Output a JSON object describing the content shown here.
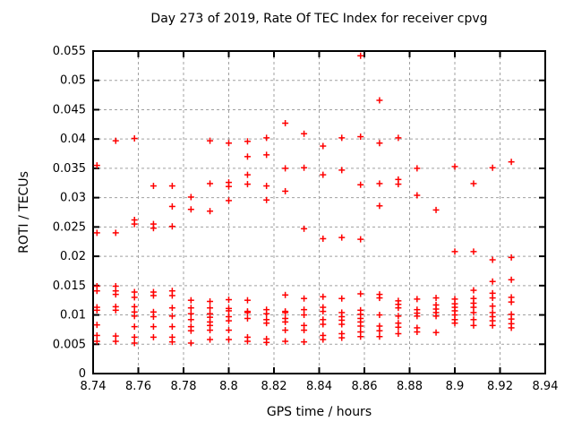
{
  "chart_data": {
    "type": "scatter",
    "title": "Day 273 of 2019, Rate Of TEC Index for receiver cpvg",
    "xlabel": "GPS time / hours",
    "ylabel": "ROTI / TECUs",
    "xlim": [
      8.74,
      8.94
    ],
    "ylim": [
      0,
      0.055
    ],
    "grid": true,
    "legend_position": "none",
    "x_ticks": [
      {
        "v": 8.74,
        "label": "8.74"
      },
      {
        "v": 8.76,
        "label": "8.76"
      },
      {
        "v": 8.78,
        "label": "8.78"
      },
      {
        "v": 8.8,
        "label": "8.8"
      },
      {
        "v": 8.82,
        "label": "8.82"
      },
      {
        "v": 8.84,
        "label": "8.84"
      },
      {
        "v": 8.86,
        "label": "8.86"
      },
      {
        "v": 8.88,
        "label": "8.88"
      },
      {
        "v": 8.9,
        "label": "8.9"
      },
      {
        "v": 8.92,
        "label": "8.92"
      },
      {
        "v": 8.94,
        "label": "8.94"
      }
    ],
    "y_ticks": [
      {
        "v": 0,
        "label": "0"
      },
      {
        "v": 0.005,
        "label": "0.005"
      },
      {
        "v": 0.01,
        "label": "0.01"
      },
      {
        "v": 0.015,
        "label": "0.015"
      },
      {
        "v": 0.02,
        "label": "0.02"
      },
      {
        "v": 0.025,
        "label": "0.025"
      },
      {
        "v": 0.03,
        "label": "0.03"
      },
      {
        "v": 0.035,
        "label": "0.035"
      },
      {
        "v": 0.04,
        "label": "0.04"
      },
      {
        "v": 0.045,
        "label": "0.045"
      },
      {
        "v": 0.05,
        "label": "0.05"
      },
      {
        "v": 0.055,
        "label": "0.055"
      }
    ],
    "marker": {
      "shape": "plus",
      "color": "#ff0000",
      "size": 7,
      "stroke_width": 1.5
    },
    "colors": {
      "grid": "#a0a0a0",
      "axis": "#000000",
      "text": "#000000",
      "background": "#ffffff"
    },
    "series": [
      {
        "name": "ROTI",
        "columns": [
          {
            "x": 8.7417,
            "y": [
              0.0355,
              0.024,
              0.0149,
              0.0141,
              0.0113,
              0.0108,
              0.0083,
              0.0065,
              0.0055
            ]
          },
          {
            "x": 8.75,
            "y": [
              0.0397,
              0.024,
              0.0149,
              0.0141,
              0.0135,
              0.0114,
              0.0108,
              0.0064,
              0.0055
            ]
          },
          {
            "x": 8.7583,
            "y": [
              0.0401,
              0.0262,
              0.0255,
              0.0139,
              0.013,
              0.0114,
              0.0105,
              0.0098,
              0.008,
              0.0062,
              0.0052
            ]
          },
          {
            "x": 8.7667,
            "y": [
              0.032,
              0.0255,
              0.0248,
              0.0139,
              0.0133,
              0.0105,
              0.0097,
              0.008,
              0.0062
            ]
          },
          {
            "x": 8.775,
            "y": [
              0.032,
              0.0285,
              0.0251,
              0.0141,
              0.0133,
              0.0112,
              0.0098,
              0.008,
              0.0062,
              0.0054
            ]
          },
          {
            "x": 8.7833,
            "y": [
              0.0301,
              0.028,
              0.0125,
              0.0112,
              0.0102,
              0.0092,
              0.008,
              0.0073,
              0.0052
            ]
          },
          {
            "x": 8.7917,
            "y": [
              0.0397,
              0.0324,
              0.0277,
              0.0123,
              0.0112,
              0.0102,
              0.0096,
              0.0088,
              0.0082,
              0.0074,
              0.0058
            ]
          },
          {
            "x": 8.8,
            "y": [
              0.0393,
              0.0326,
              0.0319,
              0.0295,
              0.0126,
              0.0111,
              0.0107,
              0.0097,
              0.009,
              0.0074,
              0.0058
            ]
          },
          {
            "x": 8.8083,
            "y": [
              0.0396,
              0.037,
              0.0339,
              0.0323,
              0.0125,
              0.0106,
              0.0104,
              0.0094,
              0.0062,
              0.0055
            ]
          },
          {
            "x": 8.8167,
            "y": [
              0.0402,
              0.0373,
              0.032,
              0.0296,
              0.0109,
              0.0102,
              0.0092,
              0.0086,
              0.0059,
              0.0053
            ]
          },
          {
            "x": 8.825,
            "y": [
              0.0427,
              0.035,
              0.0311,
              0.0134,
              0.0106,
              0.0104,
              0.0094,
              0.0088,
              0.0074,
              0.0055
            ]
          },
          {
            "x": 8.8333,
            "y": [
              0.0409,
              0.0351,
              0.0247,
              0.0128,
              0.0109,
              0.01,
              0.0082,
              0.0074,
              0.0054
            ]
          },
          {
            "x": 8.8417,
            "y": [
              0.0388,
              0.0339,
              0.023,
              0.0131,
              0.0113,
              0.0106,
              0.0092,
              0.0084,
              0.0065,
              0.0058
            ]
          },
          {
            "x": 8.85,
            "y": [
              0.0402,
              0.0347,
              0.0232,
              0.0128,
              0.0104,
              0.0097,
              0.0091,
              0.0084,
              0.0068,
              0.0061
            ]
          },
          {
            "x": 8.8583,
            "y": [
              0.0542,
              0.0404,
              0.0322,
              0.0229,
              0.0136,
              0.0108,
              0.0101,
              0.0094,
              0.0088,
              0.0081,
              0.0071,
              0.0063
            ]
          },
          {
            "x": 8.8667,
            "y": [
              0.0466,
              0.0393,
              0.0324,
              0.0286,
              0.0135,
              0.0129,
              0.01,
              0.0081,
              0.0073,
              0.0063
            ]
          },
          {
            "x": 8.875,
            "y": [
              0.0402,
              0.0331,
              0.0323,
              0.0124,
              0.0118,
              0.0112,
              0.0098,
              0.0086,
              0.0079,
              0.0068
            ]
          },
          {
            "x": 8.8833,
            "y": [
              0.035,
              0.0304,
              0.0127,
              0.0109,
              0.0103,
              0.0098,
              0.0078,
              0.0071
            ]
          },
          {
            "x": 8.8917,
            "y": [
              0.0279,
              0.0129,
              0.0117,
              0.011,
              0.0104,
              0.0098,
              0.007
            ]
          },
          {
            "x": 8.9,
            "y": [
              0.0353,
              0.0208,
              0.0127,
              0.0119,
              0.0113,
              0.0107,
              0.01,
              0.0092,
              0.0086
            ]
          },
          {
            "x": 8.9083,
            "y": [
              0.0324,
              0.0208,
              0.0142,
              0.0128,
              0.012,
              0.0113,
              0.0104,
              0.0092,
              0.0082
            ]
          },
          {
            "x": 8.9167,
            "y": [
              0.0351,
              0.0194,
              0.0157,
              0.0137,
              0.0129,
              0.0115,
              0.0104,
              0.0097,
              0.009,
              0.0082
            ]
          },
          {
            "x": 8.925,
            "y": [
              0.0361,
              0.0198,
              0.016,
              0.013,
              0.0122,
              0.0101,
              0.0093,
              0.0085,
              0.0078
            ]
          }
        ]
      }
    ]
  }
}
